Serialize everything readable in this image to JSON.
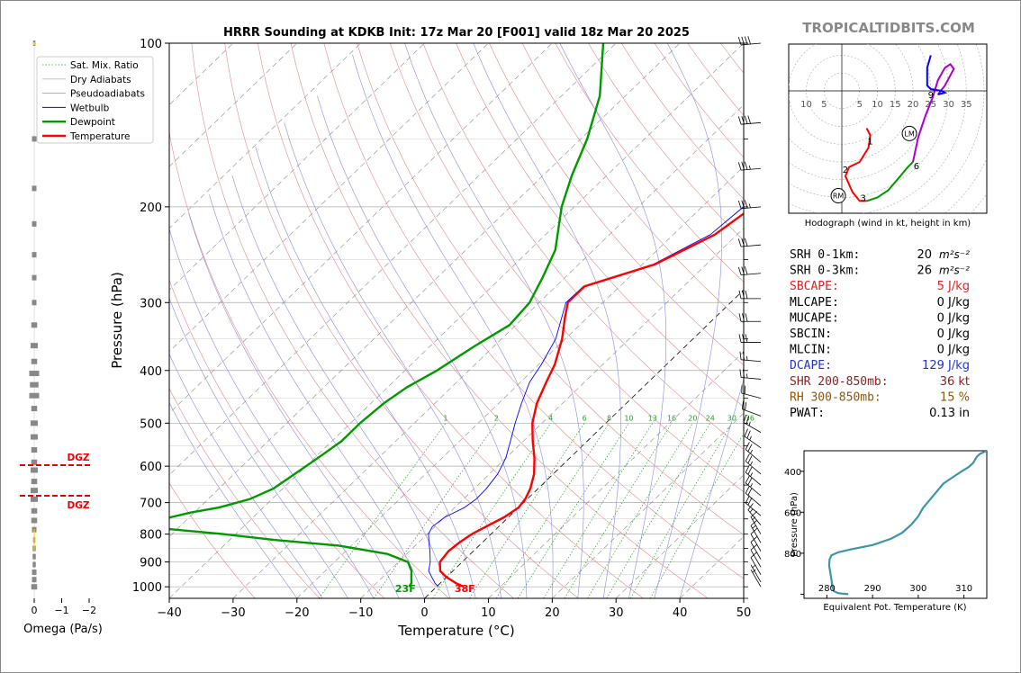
{
  "title": "HRRR Sounding at KDKB Init: 17z Mar 20 [F001] valid 18z Mar 20 2025",
  "watermark": "TROPICALTIDBITS.COM",
  "colors": {
    "temperature": "#ff0000",
    "dewpoint": "#009900",
    "wetbulb": "#0000ff",
    "dry_adiabat": "#e08a8a",
    "moist_adiabat": "#8a8ae0",
    "mix_ratio": "#2a9a2a",
    "theta_e": "#3a96aa",
    "hodo_0_3": "#ff0000",
    "hodo_3_6": "#009900",
    "hodo_6_9": "#aa00cc",
    "hodo_9_12": "#0000ff"
  },
  "legend": [
    {
      "label": "Sat. Mix. Ratio",
      "style": "mix"
    },
    {
      "label": "Dry Adiabats",
      "style": "dry"
    },
    {
      "label": "Pseudoadiabats",
      "style": "moist"
    },
    {
      "label": "Wetbulb",
      "style": "wet"
    },
    {
      "label": "Dewpoint",
      "style": "dew"
    },
    {
      "label": "Temperature",
      "style": "temp"
    }
  ],
  "chart_data": [
    {
      "type": "line",
      "name": "skew-t",
      "xlabel": "Temperature (°C)",
      "ylabel": "Pressure (hPa)",
      "xlim": [
        -40,
        50
      ],
      "ylim": [
        1050,
        100
      ],
      "x_ticks": [
        -40,
        -30,
        -20,
        -10,
        0,
        10,
        20,
        30,
        40,
        50
      ],
      "y_ticks": [
        100,
        200,
        300,
        400,
        500,
        600,
        700,
        800,
        900,
        1000
      ],
      "mix_ratio_labels": [
        "1",
        "2",
        "4",
        "6",
        "8",
        "10",
        "13",
        "16",
        "20",
        "24",
        "30",
        "36"
      ],
      "series": [
        {
          "name": "Temperature",
          "points": [
            [
              1000,
              4.3
            ],
            [
              985,
              2.5
            ],
            [
              960,
              0
            ],
            [
              935,
              -2
            ],
            [
              900,
              -3.5
            ],
            [
              860,
              -3.9
            ],
            [
              830,
              -3.6
            ],
            [
              800,
              -3
            ],
            [
              775,
              -2
            ],
            [
              745,
              -0.7
            ],
            [
              715,
              0
            ],
            [
              690,
              -0.3
            ],
            [
              660,
              -1.2
            ],
            [
              620,
              -3
            ],
            [
              580,
              -5.5
            ],
            [
              540,
              -8.5
            ],
            [
              500,
              -11.5
            ],
            [
              460,
              -14
            ],
            [
              420,
              -16
            ],
            [
              390,
              -17.5
            ],
            [
              350,
              -20.5
            ],
            [
              320,
              -23.5
            ],
            [
              300,
              -25.5
            ],
            [
              280,
              -25.5
            ],
            [
              255,
              -18
            ],
            [
              225,
              -13.5
            ],
            [
              200,
              -12
            ],
            [
              175,
              -12.5
            ],
            [
              150,
              -13.5
            ],
            [
              125,
              -14.5
            ],
            [
              100,
              -15
            ]
          ]
        },
        {
          "name": "Dewpoint",
          "points": [
            [
              1000,
              -4.3
            ],
            [
              985,
              -4.5
            ],
            [
              960,
              -5.5
            ],
            [
              935,
              -6.5
            ],
            [
              900,
              -8.5
            ],
            [
              870,
              -13
            ],
            [
              840,
              -22
            ],
            [
              820,
              -33
            ],
            [
              800,
              -42
            ],
            [
              780,
              -53
            ],
            [
              762,
              -54.5
            ],
            [
              745,
              -53
            ],
            [
              730,
              -50.5
            ],
            [
              715,
              -47
            ],
            [
              690,
              -43.5
            ],
            [
              660,
              -41.5
            ],
            [
              620,
              -40.5
            ],
            [
              580,
              -39.5
            ],
            [
              540,
              -38.5
            ],
            [
              500,
              -38.5
            ],
            [
              460,
              -38
            ],
            [
              430,
              -37
            ],
            [
              400,
              -35
            ],
            [
              360,
              -33
            ],
            [
              330,
              -31
            ],
            [
              300,
              -31.5
            ],
            [
              270,
              -33.5
            ],
            [
              240,
              -36
            ],
            [
              200,
              -42
            ],
            [
              175,
              -45.5
            ],
            [
              150,
              -49
            ],
            [
              125,
              -54
            ],
            [
              100,
              -62
            ]
          ]
        },
        {
          "name": "Wetbulb",
          "points": [
            [
              1000,
              0.3
            ],
            [
              985,
              -0.8
            ],
            [
              960,
              -2.3
            ],
            [
              935,
              -3.8
            ],
            [
              900,
              -5
            ],
            [
              860,
              -6.8
            ],
            [
              830,
              -8.3
            ],
            [
              800,
              -9.8
            ],
            [
              775,
              -10.4
            ],
            [
              745,
              -10
            ],
            [
              715,
              -8.5
            ],
            [
              690,
              -8
            ],
            [
              660,
              -8.1
            ],
            [
              620,
              -8.7
            ],
            [
              580,
              -10
            ],
            [
              540,
              -12
            ],
            [
              500,
              -14.2
            ],
            [
              460,
              -16.4
            ],
            [
              420,
              -18.6
            ],
            [
              390,
              -19.6
            ],
            [
              350,
              -21.5
            ],
            [
              320,
              -24
            ],
            [
              300,
              -25.8
            ],
            [
              280,
              -25.7
            ],
            [
              255,
              -18.3
            ],
            [
              225,
              -14.2
            ],
            [
              200,
              -13.5
            ],
            [
              175,
              -15
            ],
            [
              150,
              -17
            ],
            [
              125,
              -18.5
            ],
            [
              100,
              -20
            ]
          ]
        }
      ],
      "surface_labels": {
        "temperature": "38F",
        "dewpoint": "23F"
      },
      "dgz_labels": [
        "DGZ",
        "DGZ"
      ]
    },
    {
      "type": "bar",
      "name": "omega",
      "xlabel": "Omega (Pa/s)",
      "x_ticks": [
        "0",
        "−1",
        "−2"
      ],
      "values": [
        [
          100,
          0
        ],
        [
          150,
          0.1
        ],
        [
          185,
          0.1
        ],
        [
          215,
          0.1
        ],
        [
          245,
          0.1
        ],
        [
          270,
          0.1
        ],
        [
          300,
          0.1
        ],
        [
          330,
          0.15
        ],
        [
          360,
          0.2
        ],
        [
          385,
          0.15
        ],
        [
          405,
          0.3
        ],
        [
          425,
          0.25
        ],
        [
          445,
          0.3
        ],
        [
          470,
          0.15
        ],
        [
          500,
          0.2
        ],
        [
          530,
          0.2
        ],
        [
          560,
          0.15
        ],
        [
          590,
          0.15
        ],
        [
          610,
          0.2
        ],
        [
          640,
          0.15
        ],
        [
          665,
          0.2
        ],
        [
          690,
          0.2
        ],
        [
          725,
          0.15
        ],
        [
          755,
          0.15
        ],
        [
          785,
          0.1
        ],
        [
          820,
          0
        ],
        [
          850,
          0.05
        ],
        [
          880,
          0.05
        ],
        [
          910,
          0.05
        ],
        [
          940,
          0.1
        ],
        [
          970,
          0.1
        ],
        [
          1000,
          0.15
        ]
      ]
    },
    {
      "type": "line",
      "name": "hodograph",
      "xlabel": "Hodograph (wind in kt, height in km)",
      "ring_labels": [
        "10",
        "5",
        "5",
        "10",
        "15",
        "20",
        "25",
        "30",
        "35"
      ],
      "height_labels": [
        {
          "label": "1",
          "u": 8,
          "v": -14
        },
        {
          "label": "2",
          "u": 1,
          "v": -22
        },
        {
          "label": "3",
          "u": 6,
          "v": -30
        },
        {
          "label": "6",
          "u": 21,
          "v": -21
        },
        {
          "label": "9",
          "u": 25,
          "v": -1
        }
      ],
      "storm_markers": [
        {
          "label": "RM",
          "u": -1,
          "v": -29.5
        },
        {
          "label": "LM",
          "u": 19,
          "v": -12
        }
      ],
      "segments": [
        {
          "name": "0-3km",
          "points": [
            [
              7,
              -10.5
            ],
            [
              8,
              -12.5
            ],
            [
              7.5,
              -16
            ],
            [
              5,
              -20
            ],
            [
              2,
              -21.5
            ],
            [
              1,
              -24
            ],
            [
              3,
              -28.5
            ],
            [
              5,
              -31
            ],
            [
              7,
              -31
            ]
          ]
        },
        {
          "name": "3-6km",
          "points": [
            [
              7,
              -31
            ],
            [
              10,
              -30
            ],
            [
              13,
              -28
            ],
            [
              16,
              -24.5
            ],
            [
              18.5,
              -21.5
            ],
            [
              20,
              -20
            ]
          ]
        },
        {
          "name": "6-9km",
          "points": [
            [
              20,
              -20
            ],
            [
              21.5,
              -13
            ],
            [
              23.5,
              -7
            ],
            [
              25.5,
              -2
            ],
            [
              27,
              3
            ],
            [
              29,
              6.5
            ],
            [
              30.5,
              7.5
            ],
            [
              31.5,
              6.2
            ],
            [
              29,
              1.5
            ],
            [
              27,
              -1
            ]
          ]
        },
        {
          "name": "9-12km",
          "points": [
            [
              27,
              -1
            ],
            [
              29,
              -0.5
            ],
            [
              28,
              0
            ],
            [
              25,
              0.5
            ],
            [
              24,
              1.5
            ],
            [
              24,
              6.5
            ],
            [
              25,
              10
            ]
          ]
        }
      ]
    },
    {
      "type": "line",
      "name": "theta-e",
      "xlabel": "Equivalent Pot. Temperature (K)",
      "ylabel": "Pressure (hPa)",
      "xlim": [
        275,
        315
      ],
      "ylim": [
        1020,
        300
      ],
      "x_ticks": [
        280,
        290,
        300,
        310
      ],
      "y_ticks": [
        400,
        600,
        800
      ],
      "points": [
        [
          1000,
          284.7
        ],
        [
          995,
          282.5
        ],
        [
          985,
          281.5
        ],
        [
          960,
          281.2
        ],
        [
          930,
          281
        ],
        [
          900,
          280.8
        ],
        [
          860,
          280.5
        ],
        [
          830,
          280.6
        ],
        [
          810,
          281
        ],
        [
          795,
          282.5
        ],
        [
          780,
          285.5
        ],
        [
          760,
          290
        ],
        [
          730,
          294
        ],
        [
          700,
          296.5
        ],
        [
          660,
          298.5
        ],
        [
          620,
          300
        ],
        [
          580,
          301
        ],
        [
          540,
          302.5
        ],
        [
          500,
          304
        ],
        [
          460,
          305.5
        ],
        [
          430,
          307.5
        ],
        [
          400,
          309.5
        ],
        [
          380,
          311
        ],
        [
          360,
          312
        ],
        [
          330,
          312.8
        ],
        [
          315,
          313.5
        ],
        [
          300,
          315
        ]
      ]
    }
  ],
  "stats": [
    {
      "label": "SRH 0-1km:",
      "value": "20",
      "unit": "m²s⁻²",
      "color": "#000000"
    },
    {
      "label": "SRH 0-3km:",
      "value": "26",
      "unit": "m²s⁻²",
      "color": "#000000"
    },
    {
      "label": "SBCAPE:",
      "value": "5 J/kg",
      "unit": "",
      "color": "#dd2222"
    },
    {
      "label": "MLCAPE:",
      "value": "0 J/kg",
      "unit": "",
      "color": "#000000"
    },
    {
      "label": "MUCAPE:",
      "value": "0 J/kg",
      "unit": "",
      "color": "#000000"
    },
    {
      "label": "SBCIN:",
      "value": "0 J/kg",
      "unit": "",
      "color": "#000000"
    },
    {
      "label": "MLCIN:",
      "value": "0 J/kg",
      "unit": "",
      "color": "#000000"
    },
    {
      "label": "DCAPE:",
      "value": "129 J/kg",
      "unit": "",
      "color": "#2233cc"
    },
    {
      "label": "SHR 200-850mb:",
      "value": "36 kt",
      "unit": "",
      "color": "#882222"
    },
    {
      "label": "RH 300-850mb:",
      "value": "15 %",
      "unit": "",
      "color": "#885511"
    },
    {
      "label": "PWAT:",
      "value": "0.13 in",
      "unit": "",
      "color": "#000000"
    }
  ],
  "wind_barbs": [
    {
      "p": 100,
      "dir": 265,
      "spd": 40
    },
    {
      "p": 140,
      "dir": 265,
      "spd": 40
    },
    {
      "p": 170,
      "dir": 265,
      "spd": 35
    },
    {
      "p": 200,
      "dir": 265,
      "spd": 35
    },
    {
      "p": 235,
      "dir": 265,
      "spd": 30
    },
    {
      "p": 265,
      "dir": 265,
      "spd": 30
    },
    {
      "p": 295,
      "dir": 270,
      "spd": 30
    },
    {
      "p": 325,
      "dir": 270,
      "spd": 30
    },
    {
      "p": 355,
      "dir": 270,
      "spd": 30
    },
    {
      "p": 385,
      "dir": 275,
      "spd": 25
    },
    {
      "p": 415,
      "dir": 275,
      "spd": 25
    },
    {
      "p": 450,
      "dir": 285,
      "spd": 20
    },
    {
      "p": 485,
      "dir": 290,
      "spd": 20
    },
    {
      "p": 520,
      "dir": 300,
      "spd": 25
    },
    {
      "p": 555,
      "dir": 305,
      "spd": 25
    },
    {
      "p": 590,
      "dir": 310,
      "spd": 25
    },
    {
      "p": 620,
      "dir": 310,
      "spd": 25
    },
    {
      "p": 650,
      "dir": 310,
      "spd": 25
    },
    {
      "p": 680,
      "dir": 310,
      "spd": 25
    },
    {
      "p": 710,
      "dir": 310,
      "spd": 20
    },
    {
      "p": 740,
      "dir": 310,
      "spd": 20
    },
    {
      "p": 770,
      "dir": 320,
      "spd": 15
    },
    {
      "p": 800,
      "dir": 330,
      "spd": 15
    },
    {
      "p": 830,
      "dir": 330,
      "spd": 15
    },
    {
      "p": 860,
      "dir": 330,
      "spd": 10
    },
    {
      "p": 890,
      "dir": 330,
      "spd": 10
    },
    {
      "p": 920,
      "dir": 330,
      "spd": 10
    },
    {
      "p": 950,
      "dir": 330,
      "spd": 10
    },
    {
      "p": 980,
      "dir": 330,
      "spd": 5
    },
    {
      "p": 1000,
      "dir": 330,
      "spd": 5
    }
  ]
}
